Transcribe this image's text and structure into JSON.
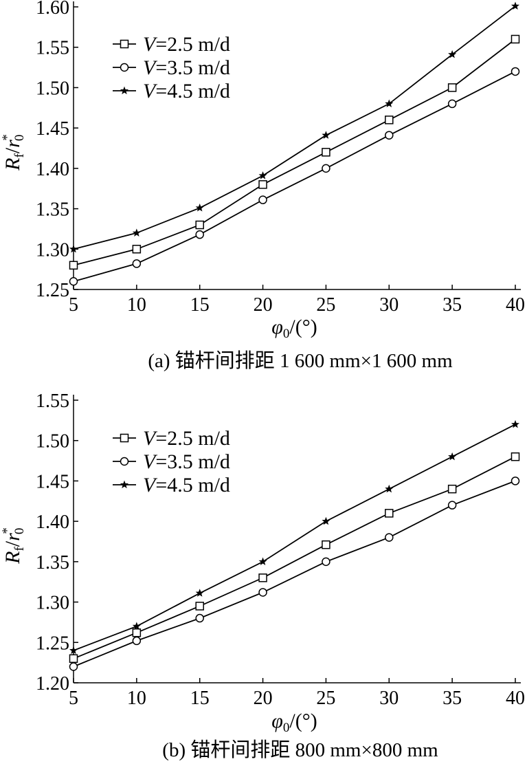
{
  "chart_data": [
    {
      "type": "line",
      "caption": "(a) 锚杆间排距 1 600 mm×1 600 mm",
      "xlabel": {
        "main": "φ",
        "sub": "0",
        "suffix": "/(°)"
      },
      "ylabel": {
        "main": "R",
        "sub": "f",
        "sep": "/",
        "main2": "r",
        "sub2": "0",
        "sup2": "*"
      },
      "x": [
        5,
        10,
        15,
        20,
        25,
        30,
        35,
        40
      ],
      "xlim": [
        5,
        40
      ],
      "ylim": [
        1.25,
        1.6
      ],
      "xticks": [
        "5",
        "10",
        "15",
        "20",
        "25",
        "30",
        "35",
        "40"
      ],
      "yticks": [
        "1.25",
        "1.30",
        "1.35",
        "1.40",
        "1.45",
        "1.50",
        "1.55",
        "1.60"
      ],
      "legend_position": "top-left",
      "series": [
        {
          "name": "V=2.5 m/d",
          "var": "V",
          "rest": "=2.5 m/d",
          "marker": "square-icon",
          "values": [
            1.28,
            1.3,
            1.33,
            1.38,
            1.42,
            1.46,
            1.5,
            1.56
          ]
        },
        {
          "name": "V=3.5 m/d",
          "var": "V",
          "rest": "=3.5 m/d",
          "marker": "circle-icon",
          "values": [
            1.26,
            1.282,
            1.318,
            1.361,
            1.4,
            1.441,
            1.48,
            1.52
          ]
        },
        {
          "name": "V=4.5 m/d",
          "var": "V",
          "rest": "=4.5 m/d",
          "marker": "star-icon",
          "values": [
            1.3,
            1.32,
            1.351,
            1.391,
            1.441,
            1.48,
            1.541,
            1.601
          ]
        }
      ]
    },
    {
      "type": "line",
      "caption": "(b) 锚杆间排距 800 mm×800 mm",
      "xlabel": {
        "main": "φ",
        "sub": "0",
        "suffix": "/(°)"
      },
      "ylabel": {
        "main": "R",
        "sub": "f",
        "sep": "/",
        "main2": "r",
        "sub2": "0",
        "sup2": "*"
      },
      "x": [
        5,
        10,
        15,
        20,
        25,
        30,
        35,
        40
      ],
      "xlim": [
        5,
        40
      ],
      "ylim": [
        1.2,
        1.55
      ],
      "xticks": [
        "5",
        "10",
        "15",
        "20",
        "25",
        "30",
        "35",
        "40"
      ],
      "yticks": [
        "1.20",
        "1.25",
        "1.30",
        "1.35",
        "1.40",
        "1.45",
        "1.50",
        "1.55"
      ],
      "legend_position": "top-left",
      "series": [
        {
          "name": "V=2.5 m/d",
          "var": "V",
          "rest": "=2.5 m/d",
          "marker": "square-icon",
          "values": [
            1.23,
            1.262,
            1.295,
            1.33,
            1.371,
            1.41,
            1.44,
            1.48
          ]
        },
        {
          "name": "V=3.5 m/d",
          "var": "V",
          "rest": "=3.5 m/d",
          "marker": "circle-icon",
          "values": [
            1.22,
            1.252,
            1.28,
            1.312,
            1.35,
            1.38,
            1.42,
            1.45
          ]
        },
        {
          "name": "V=4.5 m/d",
          "var": "V",
          "rest": "=4.5 m/d",
          "marker": "star-icon",
          "values": [
            1.24,
            1.27,
            1.311,
            1.35,
            1.4,
            1.44,
            1.48,
            1.52
          ]
        }
      ]
    }
  ]
}
